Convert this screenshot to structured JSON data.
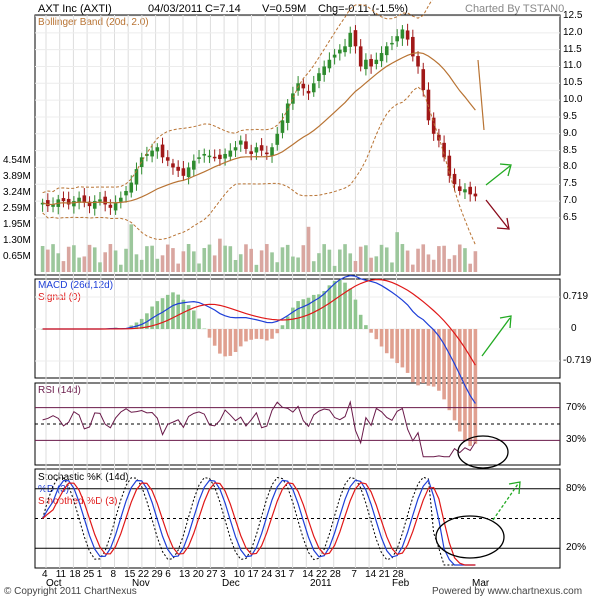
{
  "header": {
    "ticker": "AXT Inc (AXTI)",
    "date": "04/03/2011",
    "close": "C=7.14",
    "volume": "V=0.59M",
    "change": "Chg=-0.11 (-1.5%)",
    "charted_by": "Charted By TSTAN0"
  },
  "footer": {
    "copyright": "© Copyright 2011 ChartNexus",
    "powered": "Powered by www.chartnexus.com"
  },
  "colors": {
    "up": "#2e8b2e",
    "down": "#a01818",
    "band": "#b87333",
    "macd": "#1e3fd8",
    "signal": "#e01818",
    "rsi": "#6a1a4a",
    "arrow_up": "#22aa22",
    "arrow_down": "#8a0a1a"
  },
  "chart_data": [
    {
      "type": "candlestick",
      "panel": "price",
      "legend": [
        "Bollinger Band (20d, 2.0)"
      ],
      "ylim": [
        6.2,
        12.5
      ],
      "y_ticks": [
        "12.5",
        "12.0",
        "11.5",
        "11.0",
        "10.5",
        "10.0",
        "9.5",
        "9.0",
        "8.5",
        "8.0",
        "7.5",
        "7.0",
        "6.5"
      ],
      "volume_ticks": [
        "4.54M",
        "3.89M",
        "3.24M",
        "2.59M",
        "1.95M",
        "1.30M",
        "0.65M"
      ],
      "close_series": [
        6.95,
        6.85,
        6.9,
        7.05,
        7.0,
        6.9,
        7.0,
        7.1,
        6.95,
        6.85,
        7.0,
        7.05,
        6.9,
        6.8,
        6.95,
        7.1,
        7.3,
        7.55,
        7.95,
        8.3,
        8.4,
        8.5,
        8.6,
        8.3,
        8.2,
        8.0,
        7.9,
        7.75,
        8.0,
        8.2,
        8.3,
        8.4,
        8.35,
        8.3,
        8.25,
        8.4,
        8.5,
        8.6,
        8.8,
        8.55,
        8.4,
        8.6,
        8.5,
        8.4,
        8.6,
        9.0,
        9.4,
        9.9,
        10.2,
        10.5,
        10.35,
        10.2,
        10.5,
        10.8,
        11.0,
        11.2,
        11.35,
        11.5,
        11.6,
        12.0,
        11.6,
        11.0,
        11.2,
        11.0,
        11.2,
        11.4,
        11.6,
        11.7,
        11.9,
        12.1,
        11.8,
        11.3,
        11.0,
        10.3,
        9.4,
        9.0,
        8.8,
        8.3,
        7.75,
        7.5,
        7.3,
        7.35,
        7.2,
        7.14
      ]
    },
    {
      "type": "line",
      "panel": "macd",
      "legend": [
        "MACD (26d,12d)",
        "Signal (9)"
      ],
      "ylim": [
        -0.9,
        0.9
      ],
      "y_ticks": [
        "0.719",
        "0",
        "-0.719"
      ]
    },
    {
      "type": "line",
      "panel": "rsi",
      "legend": [
        "RSI (14d)"
      ],
      "ylim": [
        0,
        100
      ],
      "y_ticks": [
        "70%",
        "30%"
      ]
    },
    {
      "type": "line",
      "panel": "stochastic",
      "legend": [
        "Stochastic %K (14d)",
        "%D (3)",
        "Smoothed %D (3)"
      ],
      "ylim": [
        0,
        100
      ],
      "y_ticks": [
        "80%",
        "20%"
      ]
    }
  ],
  "x_axis": {
    "day_ticks": [
      "4",
      "11",
      "18",
      "25",
      "1",
      "8",
      "15",
      "22",
      "29",
      "6",
      "13",
      "20",
      "27",
      "3",
      "10",
      "17",
      "24",
      "31",
      "7",
      "14",
      "22",
      "28",
      "7",
      "14",
      "21",
      "28"
    ],
    "month_labels": [
      "Oct",
      "Nov",
      "Dec",
      "2011",
      "Feb",
      "Mar"
    ]
  }
}
